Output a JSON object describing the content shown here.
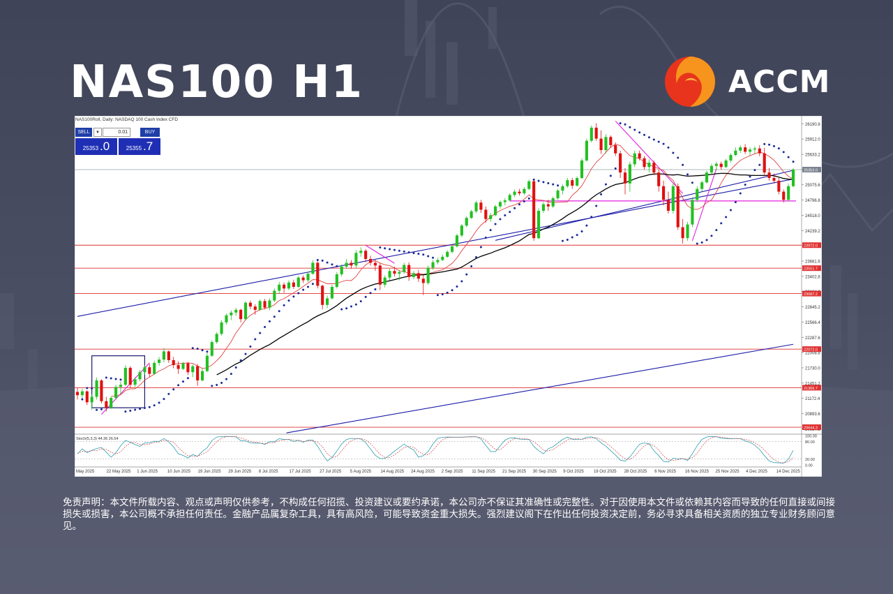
{
  "page": {
    "title": "NAS100 H1",
    "brand": "ACCM",
    "disclaimer": "免责声明：本文件所载内容、观点或声明仅供参考，不构成任何招揽、投资建议或要约承诺，本公司亦不保证其准确性或完整性。对于因使用本文件或依赖其内容而导致的任何直接或间接损失或损害，本公司概不承担任何责任。金融产品属复杂工具，具有高风险，可能导致资金重大损失。强烈建议阁下在作出任何投资决定前，务必寻求具备相关资质的独立专业财务顾问意见。"
  },
  "colors": {
    "background": "#454a5e",
    "bull_candle": "#22c022",
    "bear_candle": "#e01010",
    "trendline": "#1a1aa8",
    "ma_black": "#000000",
    "ma_red": "#e04040",
    "psar": "#1a2a9a",
    "magenta": "#e020e0",
    "hline_red": "#e03030",
    "logo_red": "#e8341c",
    "logo_orange": "#f7941d"
  },
  "trade_panel": {
    "header": "NAS100Roll, Daily: NASDAQ 100 Cash Index CFD",
    "sell_label": "SELL",
    "buy_label": "BUY",
    "lot": "0.01",
    "arrow": "▼",
    "sell_price_main": "25353",
    "sell_price_big": ".0",
    "buy_price_main": "25355",
    "buy_price_big": ".7"
  },
  "chart_data": {
    "type": "candlestick",
    "title": "",
    "y_axis": {
      "side": "right",
      "range": [
        20530,
        26310
      ],
      "ticks": [
        "26190.8",
        "25912.0",
        "25633.2",
        "25354.4",
        "25075.6",
        "24796.8",
        "24518.0",
        "24239.2",
        "23960.4",
        "23681.6",
        "23402.8",
        "23124.0",
        "22845.2",
        "22566.4",
        "22287.6",
        "22008.8",
        "21730.0",
        "21451.2",
        "21172.4",
        "20893.6",
        "20614.8"
      ],
      "current_price_label": "25353.0"
    },
    "x_axis": {
      "labels": [
        "May 2025",
        "22 May 2025",
        "1 Jun 2025",
        "10 Jun 2025",
        "19 Jun 2025",
        "29 Jun 2025",
        "8 Jul 2025",
        "17 Jul 2025",
        "27 Jul 2025",
        "5 Aug 2025",
        "14 Aug 2025",
        "24 Aug 2025",
        "2 Sep 2025",
        "11 Sep 2025",
        "21 Sep 2025",
        "30 Sep 2025",
        "9 Oct 2025",
        "19 Oct 2025",
        "28 Oct 2025",
        "6 Nov 2025",
        "16 Nov 2025",
        "25 Nov 2025",
        "4 Dec 2025",
        "14 Dec 2025"
      ]
    },
    "horizontal_levels": [
      {
        "value": 23972.0,
        "label": "23972.0"
      },
      {
        "value": 23551.7,
        "label": "23551.7"
      },
      {
        "value": 23087.2,
        "label": "23087.2"
      },
      {
        "value": 22072.0,
        "label": "22072.0"
      },
      {
        "value": 21366.7,
        "label": "21366.7"
      },
      {
        "value": 20644.3,
        "label": "20644.3"
      }
    ],
    "key_levels": [
      {
        "value": 24780,
        "note": "magenta horizontal support"
      }
    ],
    "candles_ohlc_approx": [
      [
        21290,
        21360,
        21150,
        21230
      ],
      [
        21230,
        21350,
        21170,
        21300
      ],
      [
        21300,
        21320,
        21050,
        21100
      ],
      [
        21100,
        21250,
        20960,
        21200
      ],
      [
        21200,
        21550,
        21150,
        21500
      ],
      [
        21500,
        21520,
        21080,
        21120
      ],
      [
        21120,
        21200,
        20930,
        21000
      ],
      [
        21000,
        21200,
        20980,
        21180
      ],
      [
        21180,
        21420,
        21150,
        21380
      ],
      [
        21380,
        21480,
        21250,
        21420
      ],
      [
        21420,
        21780,
        21400,
        21730
      ],
      [
        21730,
        21760,
        21360,
        21420
      ],
      [
        21420,
        21560,
        21380,
        21520
      ],
      [
        21520,
        21690,
        21480,
        21650
      ],
      [
        21650,
        21780,
        21600,
        21740
      ],
      [
        21740,
        21800,
        21560,
        21620
      ],
      [
        21620,
        21860,
        21600,
        21820
      ],
      [
        21820,
        21930,
        21770,
        21880
      ],
      [
        21880,
        22090,
        21830,
        22030
      ],
      [
        22030,
        22050,
        21820,
        21870
      ],
      [
        21870,
        21930,
        21720,
        21780
      ],
      [
        21780,
        21850,
        21620,
        21710
      ],
      [
        21710,
        21840,
        21690,
        21810
      ],
      [
        21810,
        21840,
        21600,
        21650
      ],
      [
        21650,
        21790,
        21560,
        21760
      ],
      [
        21760,
        21800,
        21400,
        21500
      ],
      [
        21500,
        21720,
        21480,
        21670
      ],
      [
        21670,
        22000,
        21650,
        21950
      ],
      [
        21950,
        22230,
        21930,
        22200
      ],
      [
        22200,
        22380,
        22170,
        22350
      ],
      [
        22350,
        22600,
        22320,
        22560
      ],
      [
        22560,
        22720,
        22520,
        22690
      ],
      [
        22690,
        22780,
        22600,
        22740
      ],
      [
        22740,
        22830,
        22680,
        22790
      ],
      [
        22790,
        22810,
        22560,
        22620
      ],
      [
        22620,
        22950,
        22600,
        22920
      ],
      [
        22920,
        22960,
        22800,
        22850
      ],
      [
        22850,
        22890,
        22700,
        22790
      ],
      [
        22790,
        22980,
        22770,
        22950
      ],
      [
        22950,
        22990,
        22800,
        22830
      ],
      [
        22830,
        23000,
        22780,
        22960
      ],
      [
        22960,
        23180,
        22930,
        23140
      ],
      [
        23140,
        23300,
        23080,
        23250
      ],
      [
        23250,
        23290,
        23100,
        23180
      ],
      [
        23180,
        23330,
        23150,
        23290
      ],
      [
        23290,
        23340,
        23170,
        23210
      ],
      [
        23210,
        23410,
        23190,
        23380
      ],
      [
        23380,
        23420,
        23280,
        23330
      ],
      [
        23330,
        23480,
        23300,
        23450
      ],
      [
        23450,
        23700,
        23430,
        23650
      ],
      [
        23650,
        23680,
        23180,
        23230
      ],
      [
        23230,
        23250,
        22800,
        22880
      ],
      [
        22880,
        23050,
        22820,
        23000
      ],
      [
        23000,
        23250,
        22980,
        23210
      ],
      [
        23210,
        23480,
        23180,
        23440
      ],
      [
        23440,
        23620,
        23400,
        23580
      ],
      [
        23580,
        23720,
        23540,
        23650
      ],
      [
        23650,
        23700,
        23540,
        23600
      ],
      [
        23600,
        23880,
        23560,
        23830
      ],
      [
        23830,
        23930,
        23760,
        23870
      ],
      [
        23870,
        23900,
        23660,
        23720
      ],
      [
        23720,
        23780,
        23600,
        23650
      ],
      [
        23650,
        23700,
        23500,
        23600
      ],
      [
        23600,
        23640,
        23150,
        23250
      ],
      [
        23250,
        23420,
        23200,
        23380
      ],
      [
        23380,
        23540,
        23330,
        23500
      ],
      [
        23500,
        23580,
        23400,
        23450
      ],
      [
        23450,
        23520,
        23330,
        23480
      ],
      [
        23480,
        23650,
        23450,
        23610
      ],
      [
        23610,
        23660,
        23320,
        23390
      ],
      [
        23390,
        23500,
        23350,
        23460
      ],
      [
        23460,
        23520,
        23300,
        23360
      ],
      [
        23360,
        23420,
        23060,
        23280
      ],
      [
        23280,
        23600,
        23250,
        23560
      ],
      [
        23560,
        23700,
        23520,
        23660
      ],
      [
        23660,
        23740,
        23620,
        23700
      ],
      [
        23700,
        23800,
        23680,
        23760
      ],
      [
        23760,
        23880,
        23740,
        23850
      ],
      [
        23850,
        23980,
        23820,
        23950
      ],
      [
        23950,
        24180,
        23930,
        24150
      ],
      [
        24150,
        24360,
        24120,
        24330
      ],
      [
        24330,
        24500,
        24300,
        24470
      ],
      [
        24470,
        24620,
        24450,
        24590
      ],
      [
        24590,
        24780,
        24560,
        24750
      ],
      [
        24750,
        24800,
        24560,
        24620
      ],
      [
        24620,
        24680,
        24380,
        24450
      ],
      [
        24450,
        24560,
        24400,
        24520
      ],
      [
        24520,
        24710,
        24500,
        24680
      ],
      [
        24680,
        24790,
        24640,
        24760
      ],
      [
        24760,
        24830,
        24700,
        24790
      ],
      [
        24790,
        24920,
        24770,
        24890
      ],
      [
        24890,
        24990,
        24850,
        24950
      ],
      [
        24950,
        25000,
        24880,
        24920
      ],
      [
        24920,
        25030,
        24890,
        25000
      ],
      [
        25000,
        25170,
        24980,
        25140
      ],
      [
        25140,
        25170,
        24050,
        24100
      ],
      [
        24100,
        24650,
        24080,
        24600
      ],
      [
        24600,
        24760,
        24560,
        24720
      ],
      [
        24720,
        24800,
        24600,
        24680
      ],
      [
        24680,
        24860,
        24650,
        24830
      ],
      [
        24830,
        25000,
        24800,
        24970
      ],
      [
        24970,
        25080,
        24900,
        25050
      ],
      [
        25050,
        25200,
        25020,
        25160
      ],
      [
        25160,
        25200,
        25000,
        25060
      ],
      [
        25060,
        25230,
        25040,
        25200
      ],
      [
        25200,
        25560,
        25180,
        25520
      ],
      [
        25520,
        25920,
        25500,
        25880
      ],
      [
        25880,
        26160,
        25850,
        26120
      ],
      [
        26120,
        26200,
        25880,
        25920
      ],
      [
        25920,
        26070,
        25640,
        25710
      ],
      [
        25710,
        26000,
        25650,
        25950
      ],
      [
        25950,
        25980,
        25750,
        25800
      ],
      [
        25800,
        25850,
        25600,
        25650
      ],
      [
        25650,
        25700,
        25200,
        25300
      ],
      [
        25300,
        25380,
        24900,
        25100
      ],
      [
        25100,
        25500,
        24950,
        25450
      ],
      [
        25450,
        25700,
        25400,
        25650
      ],
      [
        25650,
        25700,
        25520,
        25560
      ],
      [
        25560,
        25600,
        25350,
        25400
      ],
      [
        25400,
        25540,
        25300,
        25480
      ],
      [
        25480,
        25520,
        25250,
        25300
      ],
      [
        25300,
        25350,
        24950,
        25050
      ],
      [
        25050,
        25150,
        24700,
        24800
      ],
      [
        24800,
        24950,
        24550,
        24600
      ],
      [
        24600,
        25100,
        24550,
        25050
      ],
      [
        25050,
        25100,
        24250,
        24300
      ],
      [
        24300,
        24450,
        24000,
        24100
      ],
      [
        24100,
        24400,
        24050,
        24350
      ],
      [
        24350,
        24850,
        24300,
        24800
      ],
      [
        24800,
        25050,
        24760,
        25000
      ],
      [
        25000,
        25150,
        24950,
        25120
      ],
      [
        25120,
        25330,
        25100,
        25300
      ],
      [
        25300,
        25460,
        25270,
        25420
      ],
      [
        25420,
        25500,
        25350,
        25460
      ],
      [
        25460,
        25500,
        25350,
        25400
      ],
      [
        25400,
        25550,
        25380,
        25520
      ],
      [
        25520,
        25650,
        25480,
        25620
      ],
      [
        25620,
        25760,
        25600,
        25700
      ],
      [
        25700,
        25800,
        25660,
        25760
      ],
      [
        25760,
        25820,
        25640,
        25680
      ],
      [
        25680,
        25760,
        25620,
        25720
      ],
      [
        25720,
        25780,
        25650,
        25740
      ],
      [
        25740,
        25800,
        25600,
        25650
      ],
      [
        25650,
        25750,
        25250,
        25300
      ],
      [
        25300,
        25380,
        25150,
        25200
      ],
      [
        25200,
        25280,
        25100,
        25150
      ],
      [
        25150,
        25200,
        24900,
        24950
      ],
      [
        24950,
        24990,
        24750,
        24800
      ],
      [
        24800,
        25100,
        24780,
        25050
      ],
      [
        25050,
        25380,
        25030,
        25353
      ]
    ],
    "indicators": [
      "Moving averages (black, red)",
      "Parabolic SAR (blue dots)",
      "Trendlines (blue)",
      "Stochastic oscillator subwindow"
    ],
    "stochastic": {
      "label": "Stoch(5,3,3) 44.36 26.54",
      "levels": [
        "100.00",
        "80.00",
        "20.00",
        "0.00"
      ]
    },
    "grid": false
  }
}
